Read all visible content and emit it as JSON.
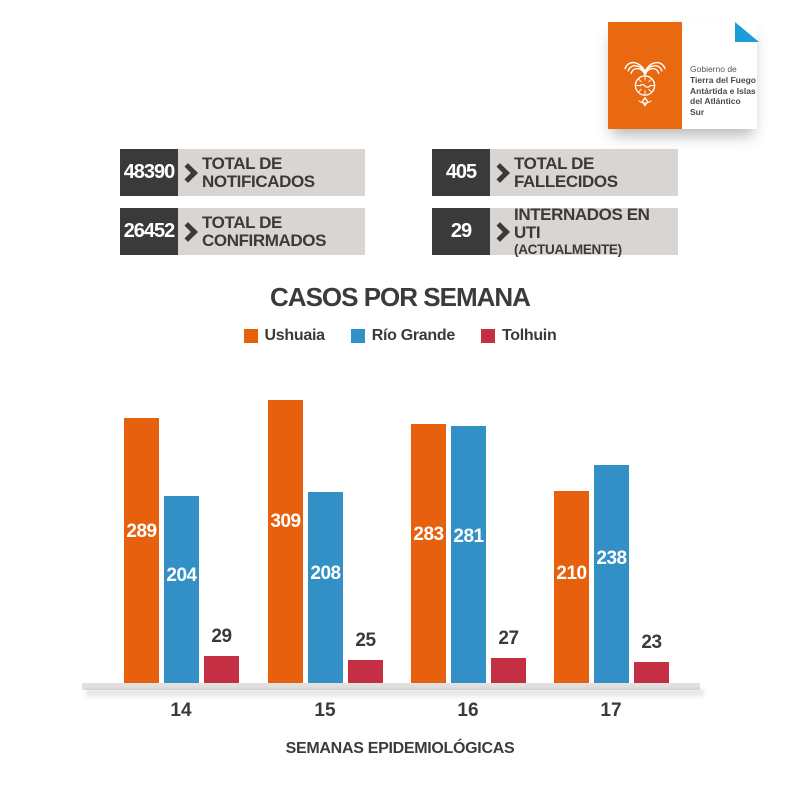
{
  "logo": {
    "line1": "Gobierno de",
    "line2": "Tierra del Fuego",
    "line3": "Antártida e Islas",
    "line4": "del Atlántico Sur"
  },
  "stats": [
    {
      "value": "48390",
      "label": "TOTAL DE NOTIFICADOS",
      "sublabel": ""
    },
    {
      "value": "26452",
      "label": "TOTAL DE CONFIRMADOS",
      "sublabel": ""
    },
    {
      "value": "405",
      "label": "TOTAL DE FALLECIDOS",
      "sublabel": ""
    },
    {
      "value": "29",
      "label": "INTERNADOS EN UTI",
      "sublabel": "(ACTUALMENTE)"
    }
  ],
  "chart_data": {
    "type": "bar",
    "title": "CASOS POR SEMANA",
    "xlabel": "SEMANAS EPIDEMIOLÓGICAS",
    "categories": [
      "14",
      "15",
      "16",
      "17"
    ],
    "series": [
      {
        "name": "Ushuaia",
        "color": "#E6600E",
        "values": [
          289,
          309,
          283,
          210
        ]
      },
      {
        "name": "Río Grande",
        "color": "#3390C7",
        "values": [
          204,
          208,
          281,
          238
        ]
      },
      {
        "name": "Tolhuin",
        "color": "#C42F44",
        "values": [
          29,
          25,
          27,
          23
        ]
      }
    ],
    "ylim": [
      0,
      320
    ],
    "grid": false,
    "legend_position": "top",
    "value_labels": true
  },
  "colors": {
    "accent_orange": "#E8690F",
    "dark_panel": "#3A3A3A",
    "light_panel": "#D8D5D2",
    "corner_triangle_blue": "#1E9CD7",
    "baseline_gray": "#E3E1DF"
  }
}
